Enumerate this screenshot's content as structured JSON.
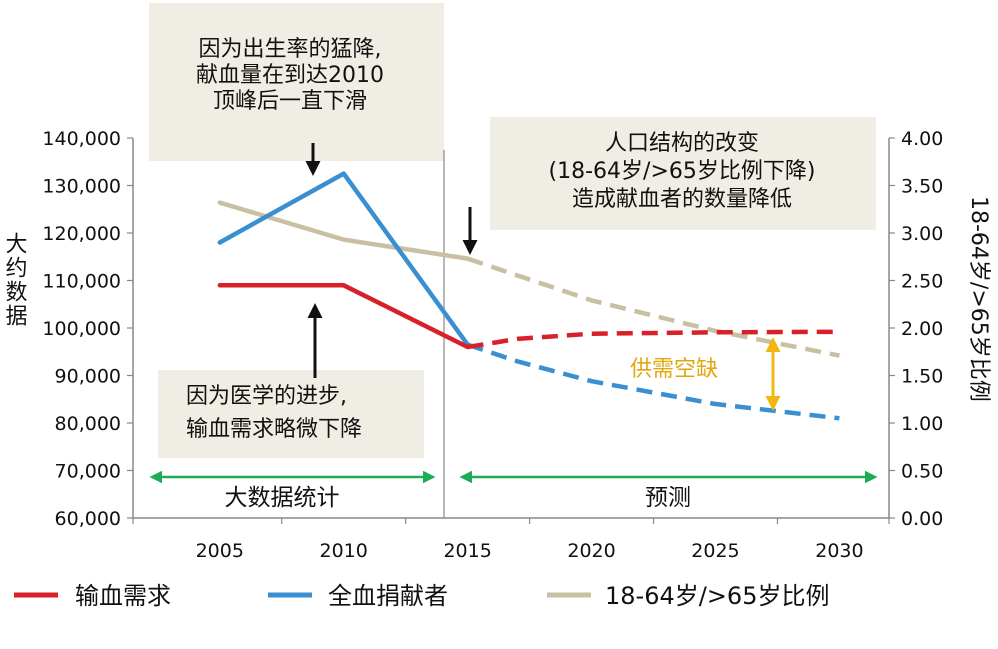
{
  "chart_data": {
    "type": "line",
    "categories": [
      "2005",
      "2010",
      "2015",
      "2020",
      "2025",
      "2030"
    ],
    "x": [
      2005,
      2006,
      2007,
      2008,
      2009,
      2010,
      2011,
      2012,
      2013,
      2014,
      2015,
      2016,
      2017,
      2018,
      2019,
      2020,
      2021,
      2022,
      2023,
      2024,
      2025,
      2026,
      2027,
      2028,
      2029,
      2030
    ],
    "xlim": [
      2001.5,
      2032
    ],
    "y_left": {
      "label": "大约数据",
      "ylim": [
        60000,
        140000
      ],
      "ticks": [
        "60,000",
        "70,000",
        "80,000",
        "90,000",
        "100,000",
        "110,000",
        "120,000",
        "130,000",
        "140,000"
      ]
    },
    "y_right": {
      "label": "18-64岁/>65岁比例",
      "ylim": [
        0,
        4
      ],
      "ticks": [
        "0.00",
        "0.50",
        "1.00",
        "1.50",
        "2.00",
        "2.50",
        "3.00",
        "3.50",
        "4.00"
      ]
    },
    "split_year": 2015,
    "series": [
      {
        "name": "输血需求",
        "color": "#d9202a",
        "axis": "left",
        "actual": [
          [
            2005,
            109000
          ],
          [
            2010,
            109000
          ],
          [
            2015,
            96000
          ]
        ],
        "forecast": [
          [
            2015,
            96000
          ],
          [
            2017,
            97700
          ],
          [
            2020,
            98800
          ],
          [
            2025,
            99100
          ],
          [
            2030,
            99200
          ]
        ]
      },
      {
        "name": "全血捐献者",
        "color": "#3a8fd0",
        "axis": "left",
        "actual": [
          [
            2005,
            118000
          ],
          [
            2010,
            132500
          ],
          [
            2015,
            96500
          ]
        ],
        "forecast": [
          [
            2015,
            96500
          ],
          [
            2017,
            93000
          ],
          [
            2020,
            88800
          ],
          [
            2025,
            84000
          ],
          [
            2030,
            81000
          ]
        ]
      },
      {
        "name": "18-64岁/>65岁比例",
        "color": "#c9bfa2",
        "axis": "right",
        "actual": [
          [
            2005,
            3.32
          ],
          [
            2010,
            2.93
          ],
          [
            2015,
            2.73
          ]
        ],
        "forecast": [
          [
            2015,
            2.73
          ],
          [
            2020,
            2.29
          ],
          [
            2025,
            1.97
          ],
          [
            2030,
            1.71
          ]
        ]
      }
    ]
  },
  "annotations": {
    "top_left_box": [
      "因为出生率的猛降,",
      "献血量在到达2010",
      "顶峰后一直下滑"
    ],
    "top_right_box": [
      "人口结构的改变",
      "(18-64岁/>65岁比例下降)",
      "造成献血者的数量降低"
    ],
    "bottom_box": [
      "因为医学的进步,",
      "输血需求略微下降"
    ],
    "gap_label": "供需空缺",
    "region_history": "大数据统计",
    "region_forecast": "预测"
  },
  "colors": {
    "box_fill": "#efede4",
    "arrow_green": "#1cac55",
    "gap_arrow": "#f2b611",
    "gap_text": "#e0a70f"
  }
}
